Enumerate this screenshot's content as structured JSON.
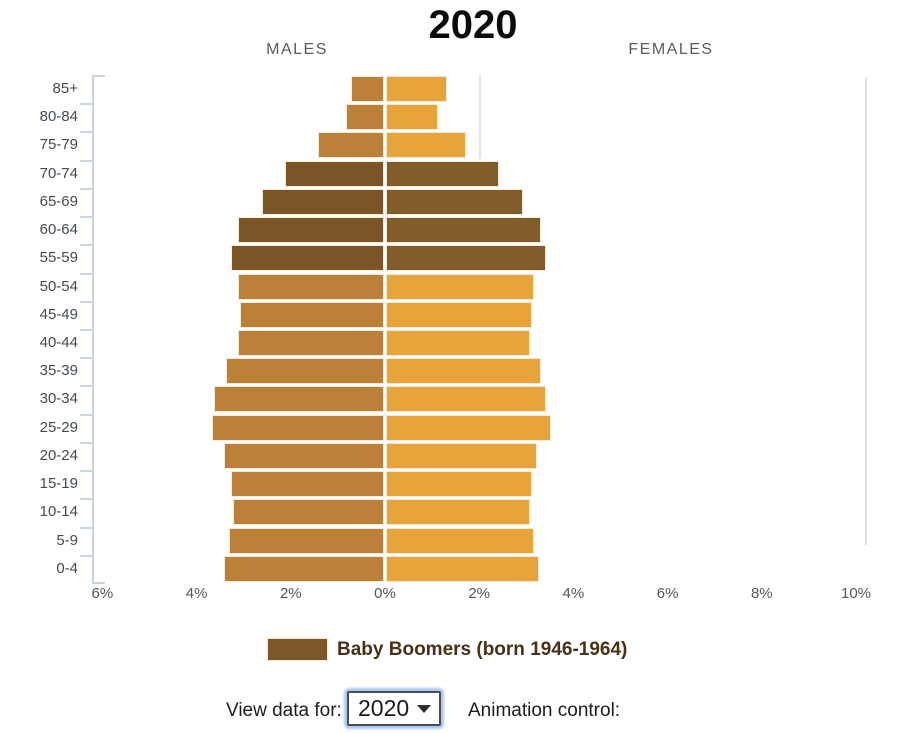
{
  "title": "2020",
  "axis": {
    "males_label": "MALES",
    "females_label": "FEMALES",
    "x_tick_labels": [
      "6%",
      "4%",
      "2%",
      "0%",
      "2%",
      "4%",
      "6%",
      "8%",
      "10%"
    ]
  },
  "chart_data": {
    "type": "bar",
    "subtype": "population-pyramid",
    "title": "2020",
    "units": "percent of total population",
    "categories": [
      "85+",
      "80-84",
      "75-79",
      "70-74",
      "65-69",
      "60-64",
      "55-59",
      "50-54",
      "45-49",
      "40-44",
      "35-39",
      "30-34",
      "25-29",
      "20-24",
      "15-19",
      "10-14",
      "5-9",
      "0-4"
    ],
    "series": [
      {
        "name": "Males",
        "side": "left",
        "values": [
          0.7,
          0.8,
          1.4,
          2.1,
          2.6,
          3.1,
          3.25,
          3.1,
          3.05,
          3.1,
          3.35,
          3.6,
          3.65,
          3.4,
          3.25,
          3.2,
          3.3,
          3.4
        ]
      },
      {
        "name": "Females",
        "side": "right",
        "values": [
          1.3,
          1.1,
          1.7,
          2.4,
          2.9,
          3.3,
          3.4,
          3.15,
          3.1,
          3.05,
          3.3,
          3.4,
          3.5,
          3.2,
          3.1,
          3.05,
          3.15,
          3.25
        ]
      }
    ],
    "highlighted_rows": [
      "70-74",
      "65-69",
      "60-64",
      "55-59"
    ],
    "highlight_label": "Baby Boomers (born 1946-1964)",
    "x_axis": {
      "left_max_pct": 6,
      "right_max_pct": 10,
      "tick_interval_pct": 2,
      "gridlines_visible_at": [
        "2% female",
        "right edge"
      ]
    },
    "colors": {
      "male": "#bc8038",
      "female": "#e7a43a",
      "boomer_male": "#7c5527",
      "boomer_female": "#835c2b",
      "bar_border": "#f3ead8",
      "axis": "#c9d4e1"
    }
  },
  "legend": {
    "swatch_color": "#7d5727",
    "label": "Baby Boomers (born 1946-1964)"
  },
  "controls": {
    "view_data_label": "View data for:",
    "year_value": "2020",
    "animation_label": "Animation control:"
  }
}
